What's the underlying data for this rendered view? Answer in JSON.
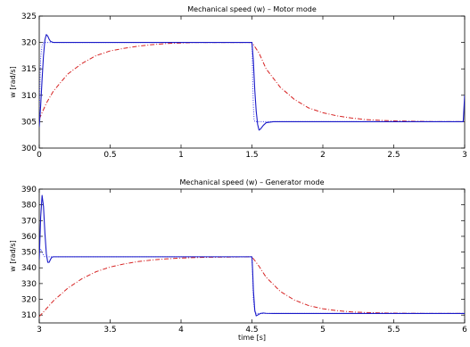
{
  "chart_data": [
    {
      "type": "line",
      "title": "Mechanical speed (w) – Motor mode",
      "xlabel": "",
      "ylabel": "w [rad/s]",
      "xlim": [
        0,
        3
      ],
      "ylim": [
        300,
        325
      ],
      "xticks": [
        0,
        0.5,
        1,
        1.5,
        2,
        2.5,
        3
      ],
      "xtick_labels": [
        "0",
        "0.5",
        "1",
        "1.5",
        "2",
        "2.5",
        "3"
      ],
      "yticks": [
        300,
        305,
        310,
        315,
        320,
        325
      ],
      "ytick_labels": [
        "300",
        "305",
        "310",
        "315",
        "320",
        "325"
      ],
      "grid": false,
      "series": [
        {
          "color": "#d62222",
          "style": "dashdot",
          "x": [
            0,
            0.05,
            0.1,
            0.2,
            0.3,
            0.4,
            0.5,
            0.6,
            0.7,
            0.8,
            0.9,
            1.0,
            1.1,
            1.2,
            1.3,
            1.4,
            1.5,
            1.55,
            1.6,
            1.7,
            1.8,
            1.9,
            2.0,
            2.1,
            2.2,
            2.3,
            2.4,
            2.5,
            2.6,
            2.7,
            2.8,
            2.9,
            3.0
          ],
          "y": [
            305.5,
            308.5,
            310.8,
            314.0,
            316.0,
            317.5,
            318.4,
            318.9,
            319.3,
            319.6,
            319.8,
            319.9,
            320.0,
            320.0,
            320.0,
            320.0,
            320.0,
            318.0,
            315.0,
            311.5,
            309.2,
            307.6,
            306.7,
            306.1,
            305.7,
            305.4,
            305.25,
            305.15,
            305.1,
            305.05,
            305.0,
            305.0,
            305.0
          ]
        },
        {
          "color": "#3a3af0",
          "style": "dotted",
          "x": [
            0,
            0.005,
            0.01,
            0.02,
            0.03,
            0.05,
            0.1,
            0.5,
            1.0,
            1.5,
            1.502,
            1.505,
            1.51,
            1.515,
            1.52,
            1.53,
            1.55,
            1.6,
            2.0,
            2.5,
            3.0
          ],
          "y": [
            305,
            312,
            317,
            319.5,
            320,
            320,
            320,
            320,
            320,
            320,
            318,
            313,
            308,
            305.5,
            305,
            305,
            305,
            305,
            305,
            305,
            305
          ]
        },
        {
          "color": "#1a1ac8",
          "style": "solid",
          "x": [
            0,
            0.01,
            0.02,
            0.03,
            0.04,
            0.05,
            0.06,
            0.07,
            0.08,
            0.1,
            0.12,
            0.2,
            0.5,
            1.0,
            1.5,
            1.51,
            1.52,
            1.53,
            1.54,
            1.55,
            1.56,
            1.58,
            1.6,
            1.65,
            1.7,
            2.0,
            2.5,
            2.99,
            3.0
          ],
          "y": [
            304,
            308,
            313,
            317.5,
            320.5,
            321.5,
            321.2,
            320.6,
            320.2,
            320,
            320,
            320,
            320,
            320,
            320,
            316.5,
            311,
            307,
            304.5,
            303.4,
            303.6,
            304.3,
            304.8,
            305,
            305,
            305,
            305,
            305,
            310
          ]
        }
      ]
    },
    {
      "type": "line",
      "title": "Mechanical speed (w) – Generator mode",
      "xlabel": "time [s]",
      "ylabel": "w [rad/s]",
      "xlim": [
        3,
        6
      ],
      "ylim": [
        305,
        390
      ],
      "xticks": [
        3,
        3.5,
        4,
        4.5,
        5,
        5.5,
        6
      ],
      "xtick_labels": [
        "3",
        "3.5",
        "4",
        "4.5",
        "5",
        "5.5",
        "6"
      ],
      "yticks": [
        310,
        320,
        330,
        340,
        350,
        360,
        370,
        380,
        390
      ],
      "ytick_labels": [
        "310",
        "320",
        "330",
        "340",
        "350",
        "360",
        "370",
        "380",
        "390"
      ],
      "grid": false,
      "series": [
        {
          "color": "#d62222",
          "style": "dashdot",
          "x": [
            3.0,
            3.05,
            3.1,
            3.2,
            3.3,
            3.4,
            3.5,
            3.6,
            3.7,
            3.8,
            3.9,
            4.0,
            4.1,
            4.2,
            4.3,
            4.4,
            4.5,
            4.55,
            4.6,
            4.7,
            4.8,
            4.9,
            5.0,
            5.1,
            5.2,
            5.3,
            5.4,
            5.5,
            5.6,
            5.7,
            5.8,
            5.9,
            6.0
          ],
          "y": [
            309,
            314,
            319,
            327,
            333,
            337.5,
            340.5,
            342.5,
            344,
            345,
            345.7,
            346.2,
            346.5,
            346.7,
            346.8,
            346.9,
            347,
            341,
            334,
            325,
            319.5,
            316,
            314,
            312.8,
            312,
            311.6,
            311.4,
            311.2,
            311.1,
            311.05,
            311,
            311,
            311
          ]
        },
        {
          "color": "#3a3af0",
          "style": "dotted",
          "x": [
            3.0,
            3.01,
            3.02,
            3.03,
            3.04,
            3.05,
            3.1,
            3.5,
            4.0,
            4.5,
            4.505,
            4.51,
            4.52,
            4.53,
            4.55,
            4.6,
            5.0,
            5.5,
            6.0
          ],
          "y": [
            350,
            352,
            350,
            348,
            347,
            347,
            347,
            347,
            347,
            347,
            335,
            320,
            312,
            311,
            311,
            311,
            311,
            311,
            311
          ]
        },
        {
          "color": "#1a1ac8",
          "style": "solid",
          "x": [
            3.0,
            3.01,
            3.02,
            3.03,
            3.04,
            3.05,
            3.06,
            3.07,
            3.08,
            3.09,
            3.1,
            3.12,
            3.15,
            3.2,
            3.5,
            4.0,
            4.5,
            4.505,
            4.51,
            4.52,
            4.53,
            4.54,
            4.56,
            4.58,
            4.6,
            4.65,
            4.7,
            5.0,
            5.5,
            6.0
          ],
          "y": [
            345,
            372,
            386,
            379,
            362,
            349,
            343.5,
            343.5,
            345.5,
            346.8,
            347,
            347,
            347,
            347,
            347,
            347,
            347,
            338,
            326,
            313,
            309.5,
            310,
            311,
            311.3,
            311.1,
            311,
            311,
            311,
            311,
            311
          ]
        }
      ]
    }
  ]
}
